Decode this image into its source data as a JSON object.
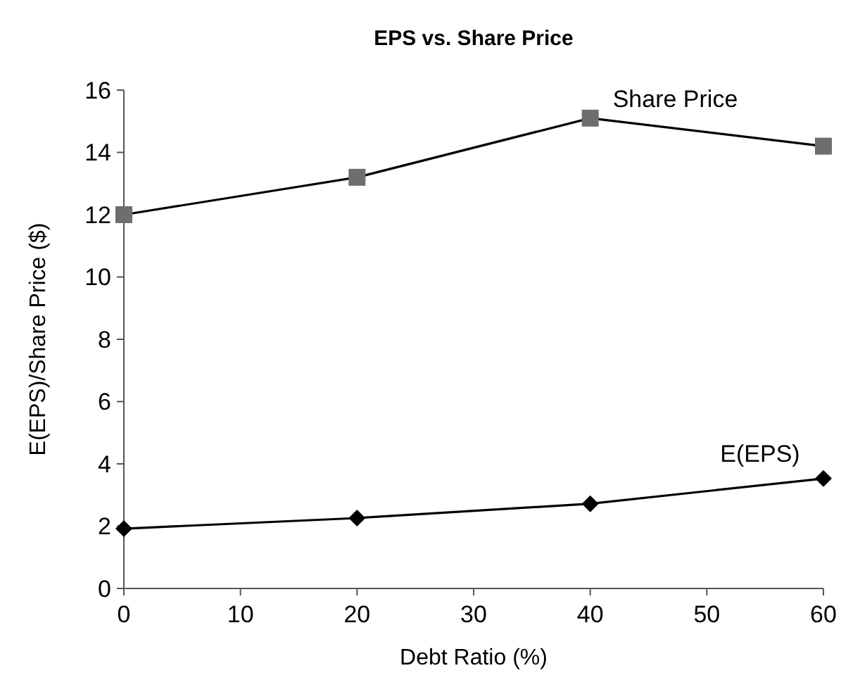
{
  "chart_data": {
    "type": "line",
    "title": "EPS vs. Share Price",
    "xlabel": "Debt Ratio (%)",
    "ylabel": "E(EPS)/Share Price ($)",
    "x": [
      0,
      20,
      40,
      60
    ],
    "series": [
      {
        "name": "Share Price",
        "color": "#6e6e6e",
        "marker": "square",
        "values": [
          12.0,
          13.2,
          15.1,
          14.2
        ]
      },
      {
        "name": "E(EPS)",
        "color": "#000000",
        "marker": "diamond",
        "values": [
          1.92,
          2.26,
          2.72,
          3.53
        ]
      }
    ],
    "xlim": [
      0,
      60
    ],
    "xticks": [
      0,
      10,
      20,
      30,
      40,
      50,
      60
    ],
    "ylim": [
      0,
      16
    ],
    "yticks": [
      0,
      2,
      4,
      6,
      8,
      10,
      12,
      14,
      16
    ],
    "line_style": "solid"
  }
}
